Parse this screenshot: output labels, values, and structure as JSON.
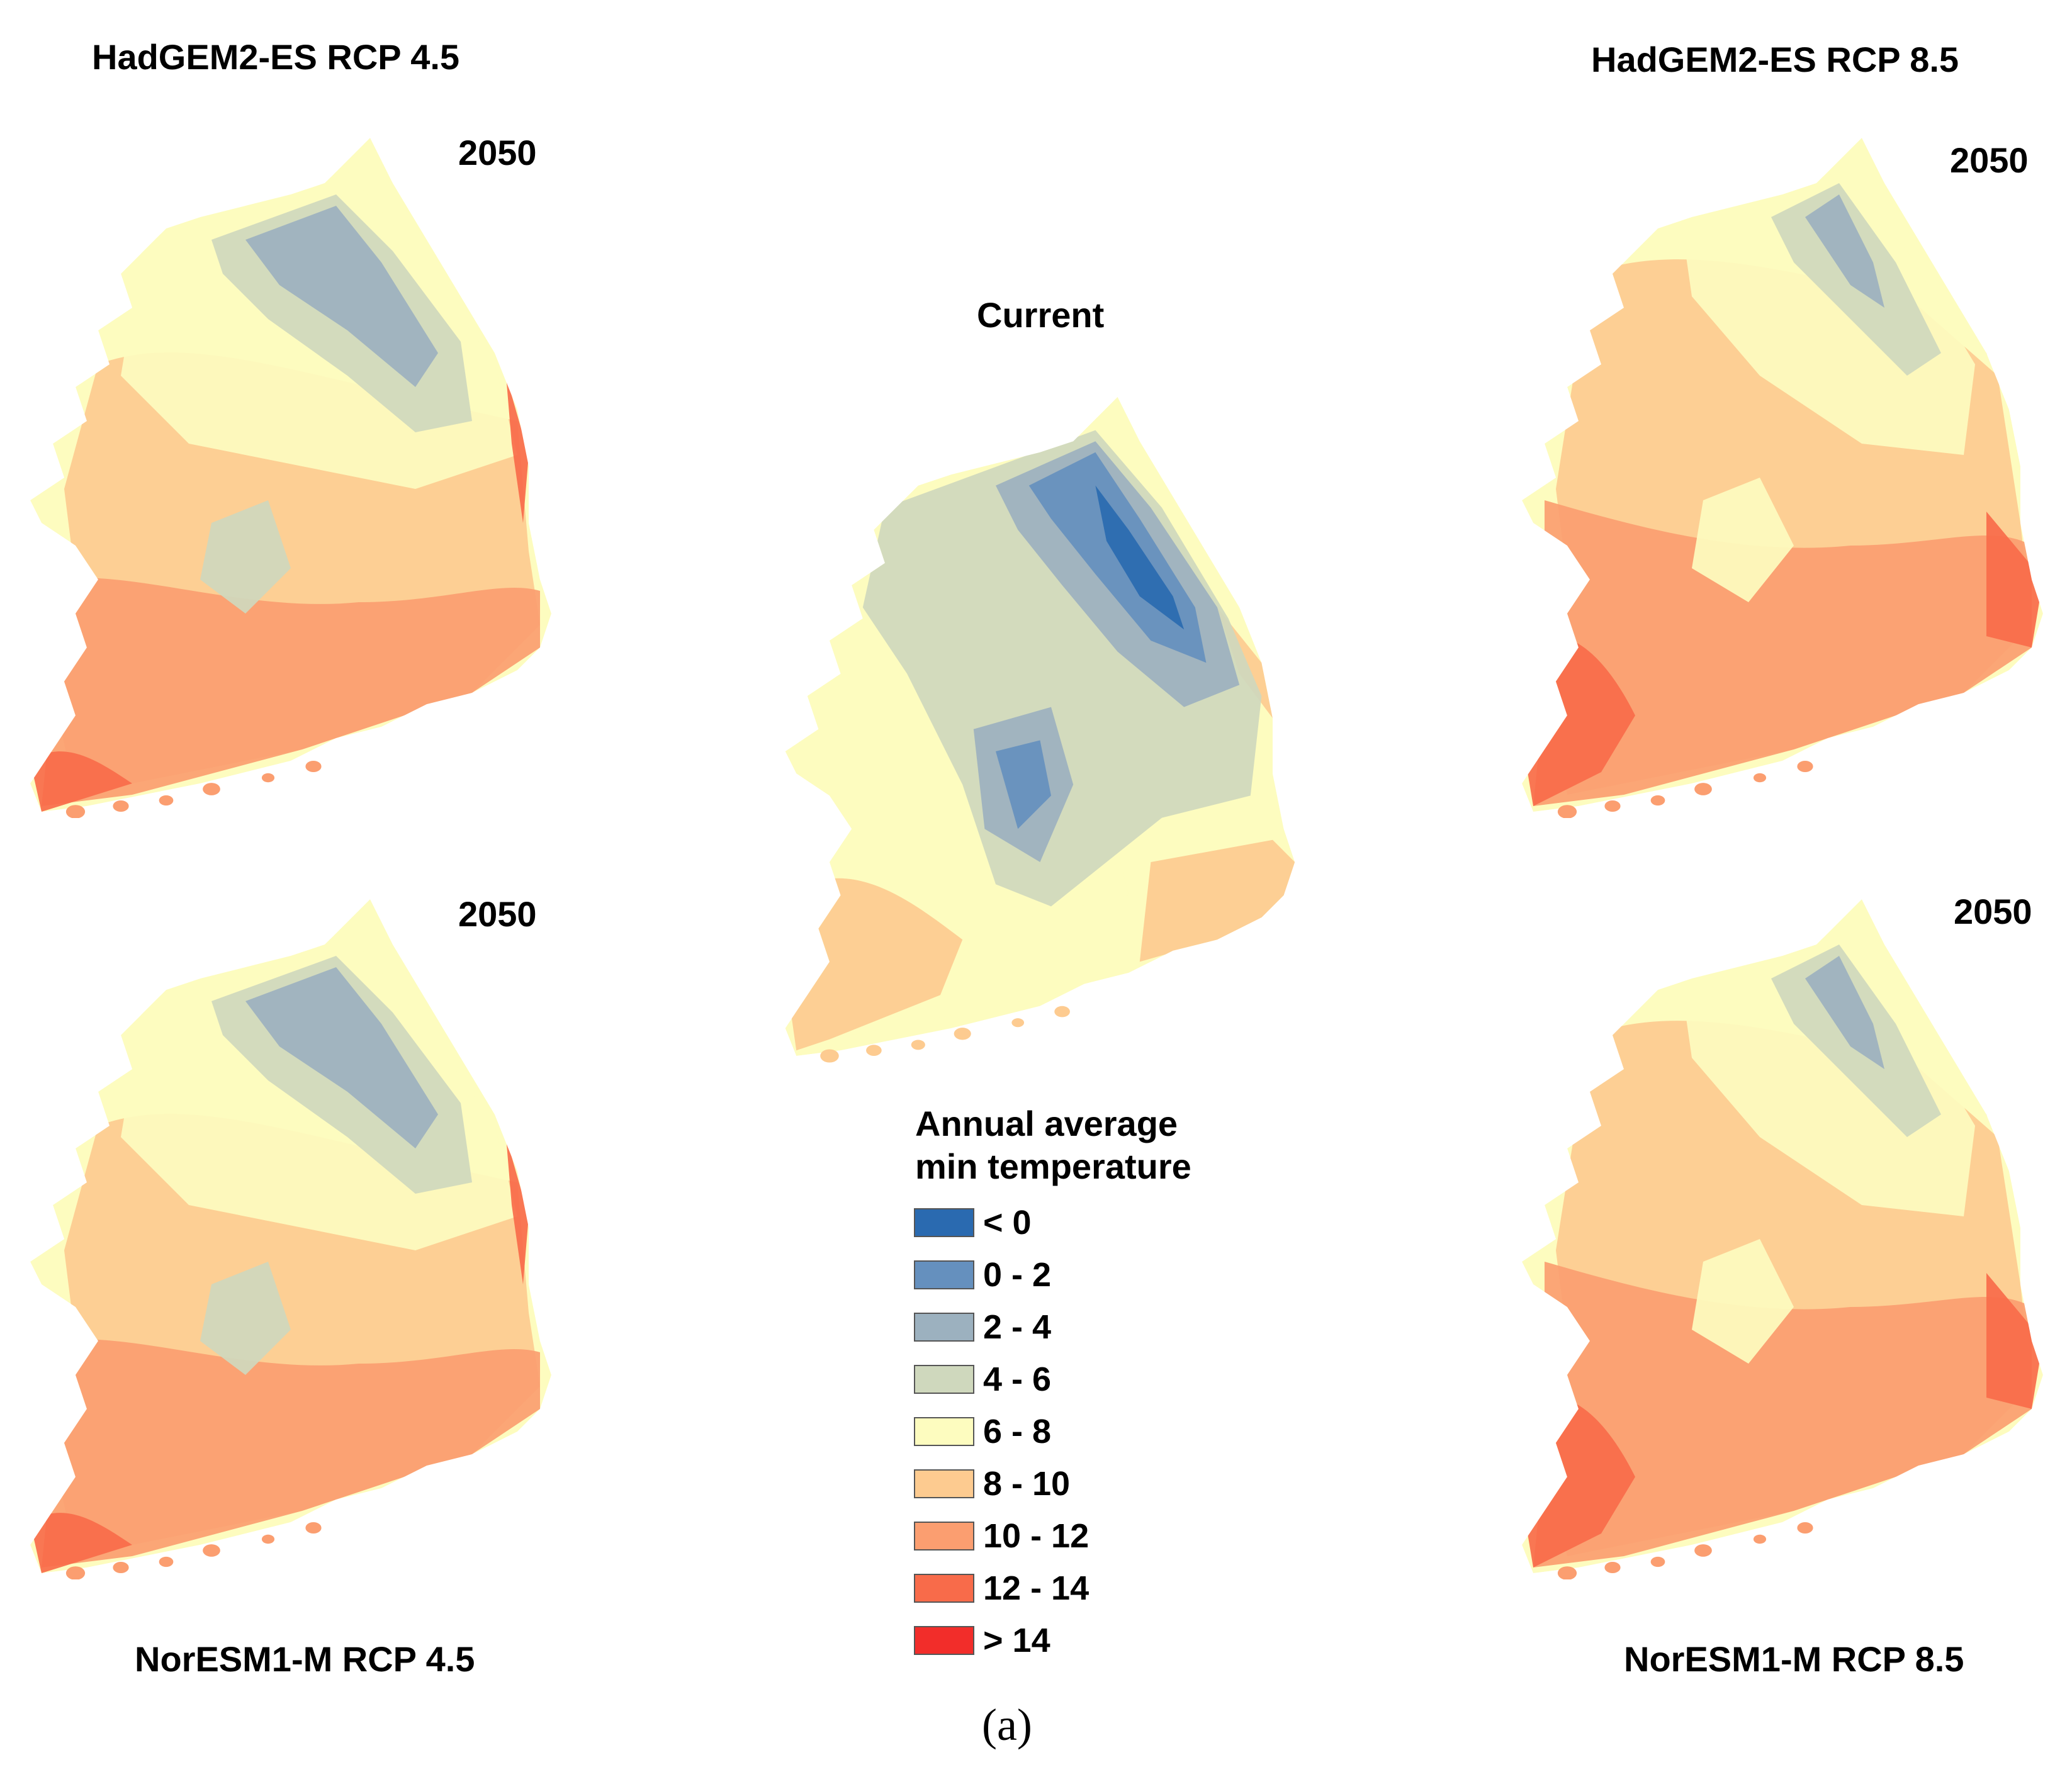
{
  "panels": [
    {
      "id": "had45",
      "model_label": "HadGEM2-ES RCP 4.5",
      "year": "2050",
      "palette": "warm1"
    },
    {
      "id": "had85",
      "model_label": "HadGEM2-ES RCP 8.5",
      "year": "2050",
      "palette": "warm2"
    },
    {
      "id": "nor45",
      "model_label": "NorESM1-M RCP 4.5",
      "year": "2050",
      "palette": "warm1"
    },
    {
      "id": "nor85",
      "model_label": "NorESM1-M RCP 8.5",
      "year": "2050",
      "palette": "warm2"
    },
    {
      "id": "current",
      "model_label": "Current",
      "palette": "cool"
    }
  ],
  "legend": {
    "title_line1": "Annual average",
    "title_line2": "min temperature",
    "classes": [
      {
        "label": "< 0",
        "color": "#2a6ab0"
      },
      {
        "label": "0 - 2",
        "color": "#6590be"
      },
      {
        "label": "2 - 4",
        "color": "#9cb1bf"
      },
      {
        "label": "4 - 6",
        "color": "#cfd8bd"
      },
      {
        "label": "6 - 8",
        "color": "#fdfcbf"
      },
      {
        "label": "8 - 10",
        "color": "#fdcb90"
      },
      {
        "label": "10 - 12",
        "color": "#fb9e70"
      },
      {
        "label": "12 - 14",
        "color": "#f86b4a"
      },
      {
        "label": "> 14",
        "color": "#f22d2a"
      }
    ]
  },
  "caption": "(a)"
}
